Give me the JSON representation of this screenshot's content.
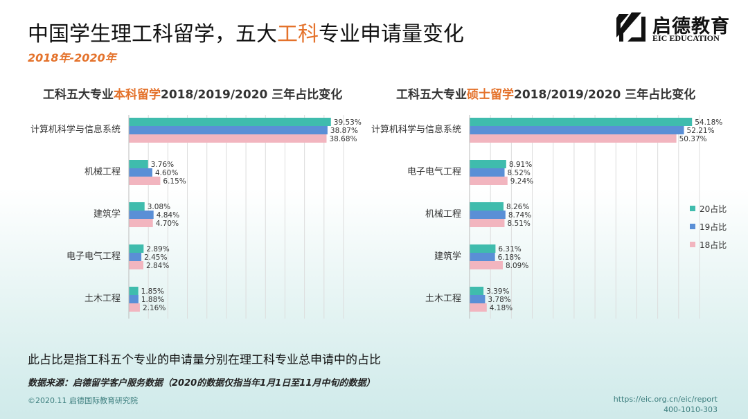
{
  "header": {
    "title_part1": "中国学生理工科留学，五大",
    "title_highlight": "工科",
    "title_part2": "专业申请量变化",
    "subtitle": "2018年-2020年"
  },
  "logo": {
    "name_cn": "启德教育",
    "name_en": "EIC EDUCATION"
  },
  "colors": {
    "accent": "#e4722b",
    "s20": "#3fbcad",
    "s19": "#5a8fd6",
    "s18": "#f2b5bf"
  },
  "legend": [
    {
      "label": "20占比",
      "color": "#3fbcad"
    },
    {
      "label": "19占比",
      "color": "#5a8fd6"
    },
    {
      "label": "18占比",
      "color": "#f2b5bf"
    }
  ],
  "note": "此占比是指工科五个专业的申请量分别在理工科专业总申请中的占比",
  "source": "数据来源：启德留学客户服务数据（2020的数据仅指当年1月1日至11月中旬的数据）",
  "footer": {
    "copyright": "©2020.11 启德国际教育研究院",
    "url": "https://eic.org.cn/eic/report",
    "phone": "400-1010-303"
  },
  "chart_data": [
    {
      "type": "bar",
      "title_part1": "工科五大专业",
      "title_highlight": "本科留学",
      "title_part2": "2018/2019/2020 三年占比变化",
      "categories": [
        "计算机科学与信息系统",
        "机械工程",
        "建筑学",
        "电子电气工程",
        "土木工程"
      ],
      "series": [
        {
          "name": "20占比",
          "values": [
            39.53,
            3.76,
            3.08,
            2.89,
            1.85
          ],
          "labels": [
            "39.53%",
            "3.76%",
            "3.08%",
            "2.89%",
            "1.85%"
          ]
        },
        {
          "name": "19占比",
          "values": [
            38.87,
            4.6,
            4.84,
            2.45,
            1.88
          ],
          "labels": [
            "38.87%",
            "4.60%",
            "4.84%",
            "2.45%",
            "1.88%"
          ]
        },
        {
          "name": "18占比",
          "values": [
            38.68,
            6.15,
            4.7,
            2.84,
            2.16
          ],
          "labels": [
            "38.68%",
            "6.15%",
            "4.70%",
            "2.84%",
            "2.16%"
          ]
        }
      ],
      "xlim": [
        0,
        42
      ],
      "grid": true
    },
    {
      "type": "bar",
      "title_part1": "工科五大专业",
      "title_highlight": "硕士留学",
      "title_part2": "2018/2019/2020 三年占比变化",
      "categories": [
        "计算机科学与信息系统",
        "电子电气工程",
        "机械工程",
        "建筑学",
        "土木工程"
      ],
      "series": [
        {
          "name": "20占比",
          "values": [
            54.18,
            8.91,
            8.26,
            6.31,
            3.39
          ],
          "labels": [
            "54.18%",
            "8.91%",
            "8.26%",
            "6.31%",
            "3.39%"
          ]
        },
        {
          "name": "19占比",
          "values": [
            52.21,
            8.52,
            8.74,
            6.18,
            3.78
          ],
          "labels": [
            "52.21%",
            "8.52%",
            "8.74%",
            "6.18%",
            "3.78%"
          ]
        },
        {
          "name": "18占比",
          "values": [
            50.37,
            9.24,
            8.51,
            8.09,
            4.18
          ],
          "labels": [
            "50.37%",
            "9.24%",
            "8.51%",
            "8.09%",
            "4.18%"
          ]
        }
      ],
      "xlim": [
        0,
        56
      ],
      "grid": true
    }
  ]
}
